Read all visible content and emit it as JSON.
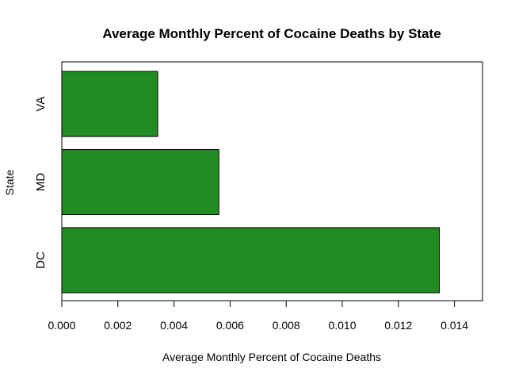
{
  "chart_data": {
    "type": "bar",
    "orientation": "horizontal",
    "title": "Average Monthly Percent of Cocaine Deaths by State",
    "xlabel": "Average Monthly Percent of Cocaine Deaths",
    "ylabel": "State",
    "categories": [
      "DC",
      "MD",
      "VA"
    ],
    "values": [
      0.01346,
      0.0056,
      0.00342
    ],
    "xlim": [
      0,
      0.015
    ],
    "xticks": [
      "0.000",
      "0.002",
      "0.004",
      "0.006",
      "0.008",
      "0.010",
      "0.012",
      "0.014"
    ],
    "xtick_values": [
      0,
      0.002,
      0.004,
      0.006,
      0.008,
      0.01,
      0.012,
      0.014
    ],
    "bar_color": "#228b22",
    "grid": false
  }
}
